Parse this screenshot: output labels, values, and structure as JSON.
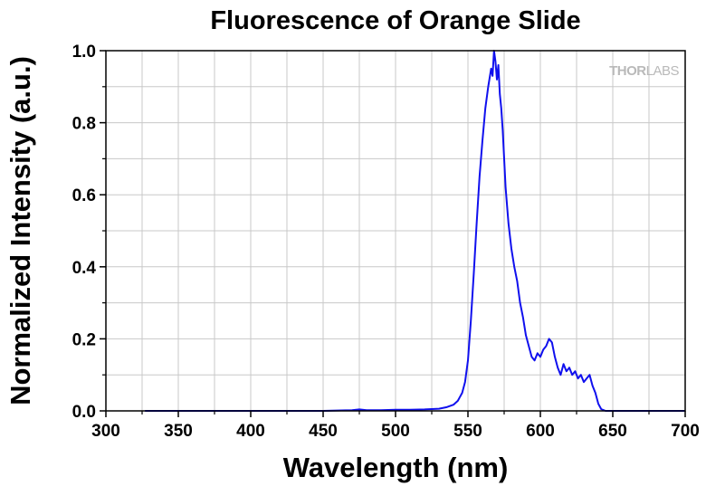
{
  "chart_data": {
    "type": "line",
    "title": "Fluorescence of Orange Slide",
    "xlabel": "Wavelength (nm)",
    "ylabel": "Normalized Intensity (a.u.)",
    "xlim": [
      300,
      700
    ],
    "ylim": [
      0,
      1.0
    ],
    "xticks": [
      300,
      350,
      400,
      450,
      500,
      550,
      600,
      650,
      700
    ],
    "xtick_labels": [
      "300",
      "350",
      "400",
      "450",
      "500",
      "550",
      "600",
      "650",
      "700"
    ],
    "yticks": [
      0.0,
      0.2,
      0.4,
      0.6,
      0.8,
      1.0
    ],
    "ytick_labels": [
      "0.0",
      "0.2",
      "0.4",
      "0.6",
      "0.8",
      "1.0"
    ],
    "grid": true,
    "legend": "none",
    "series": [
      {
        "color": "#1010ee",
        "x": [
          327,
          400,
          450,
          470,
          475,
          480,
          490,
          500,
          510,
          520,
          530,
          535,
          540,
          543,
          546,
          548,
          550,
          552,
          554,
          556,
          558,
          560,
          562,
          564,
          566,
          567,
          568,
          569,
          570,
          571,
          572,
          573,
          574,
          575,
          576,
          578,
          580,
          582,
          584,
          586,
          588,
          590,
          592,
          594,
          596,
          598,
          600,
          602,
          604,
          606,
          608,
          610,
          612,
          614,
          616,
          618,
          620,
          622,
          624,
          626,
          628,
          630,
          632,
          634,
          636,
          638,
          640,
          642,
          645,
          650,
          700
        ],
        "y": [
          0.0,
          0.0,
          0.0,
          0.002,
          0.004,
          0.002,
          0.002,
          0.003,
          0.003,
          0.004,
          0.006,
          0.01,
          0.017,
          0.028,
          0.05,
          0.08,
          0.14,
          0.25,
          0.38,
          0.52,
          0.65,
          0.75,
          0.84,
          0.9,
          0.95,
          0.93,
          1.0,
          0.97,
          0.92,
          0.96,
          0.88,
          0.84,
          0.78,
          0.7,
          0.62,
          0.52,
          0.45,
          0.4,
          0.36,
          0.3,
          0.26,
          0.21,
          0.18,
          0.15,
          0.14,
          0.16,
          0.15,
          0.17,
          0.18,
          0.2,
          0.19,
          0.15,
          0.12,
          0.1,
          0.13,
          0.11,
          0.12,
          0.1,
          0.11,
          0.09,
          0.1,
          0.08,
          0.09,
          0.1,
          0.07,
          0.05,
          0.02,
          0.005,
          0.0,
          0.0,
          0.0
        ]
      }
    ]
  },
  "watermark": {
    "bold_part": "THOR",
    "light_part": "LABS"
  },
  "colors": {
    "line": "#1010ee",
    "grid": "#c8c8c8",
    "axis": "#000000"
  }
}
